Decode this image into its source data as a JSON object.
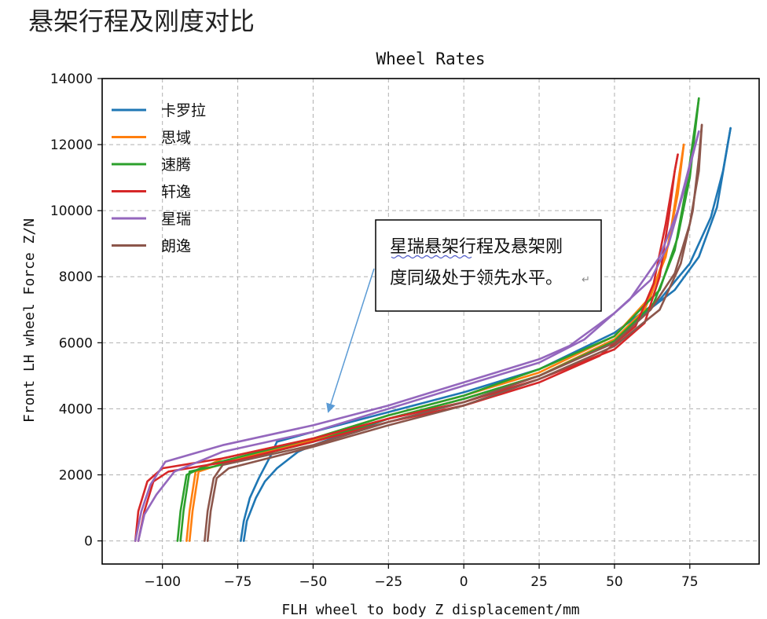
{
  "page": {
    "heading": "悬架行程及刚度对比"
  },
  "chart_data": {
    "type": "line",
    "title": "Wheel Rates",
    "xlabel": "FLH wheel to body Z displacement/mm",
    "ylabel": "Front LH wheel Force Z/N",
    "xlim": [
      -120,
      98
    ],
    "ylim": [
      -700,
      14000
    ],
    "xticks": [
      -100,
      -75,
      -50,
      -25,
      0,
      25,
      50,
      75
    ],
    "xtick_labels": [
      "−100",
      "−75",
      "−50",
      "−25",
      "0",
      "25",
      "50",
      "75"
    ],
    "yticks": [
      0,
      2000,
      4000,
      6000,
      8000,
      10000,
      12000,
      14000
    ],
    "ytick_labels": [
      "0",
      "2000",
      "4000",
      "6000",
      "8000",
      "10000",
      "12000",
      "14000"
    ],
    "grid": true,
    "legend_position": "top-left",
    "annotation": {
      "text_line1": "星瑞悬架行程及悬架刚",
      "text_line2": "度同级处于领先水平。",
      "return_mark": "↵",
      "arrow_target": [
        -45,
        3900
      ]
    },
    "series": [
      {
        "name": "卡罗拉",
        "color": "#1f77b4",
        "branches": [
          [
            [
              -74,
              0
            ],
            [
              -73,
              600
            ],
            [
              -71,
              1300
            ],
            [
              -68,
              1900
            ],
            [
              -64,
              2600
            ],
            [
              -62,
              3000
            ],
            [
              -50,
              3300
            ],
            [
              -25,
              3900
            ],
            [
              0,
              4500
            ],
            [
              25,
              5200
            ],
            [
              50,
              6300
            ],
            [
              65,
              7300
            ],
            [
              75,
              8400
            ],
            [
              82,
              9800
            ],
            [
              86,
              11200
            ],
            [
              88.5,
              12500
            ]
          ],
          [
            [
              -73,
              0
            ],
            [
              -72,
              600
            ],
            [
              -69,
              1300
            ],
            [
              -66,
              1800
            ],
            [
              -62,
              2200
            ],
            [
              -55,
              2700
            ],
            [
              -50,
              2900
            ],
            [
              -25,
              3700
            ],
            [
              0,
              4300
            ],
            [
              25,
              5000
            ],
            [
              50,
              6100
            ],
            [
              60,
              6900
            ],
            [
              70,
              7600
            ],
            [
              78,
              8600
            ],
            [
              84,
              10100
            ],
            [
              88.5,
              12500
            ]
          ]
        ]
      },
      {
        "name": "思域",
        "color": "#ff7f0e",
        "branches": [
          [
            [
              -92,
              0
            ],
            [
              -91,
              900
            ],
            [
              -89,
              2100
            ],
            [
              -80,
              2500
            ],
            [
              -50,
              3100
            ],
            [
              -25,
              3800
            ],
            [
              0,
              4400
            ],
            [
              25,
              5100
            ],
            [
              50,
              6200
            ],
            [
              62,
              7400
            ],
            [
              68,
              9000
            ],
            [
              71,
              10800
            ],
            [
              73,
              12000
            ]
          ],
          [
            [
              -91,
              0
            ],
            [
              -90,
              900
            ],
            [
              -88,
              2100
            ],
            [
              -78,
              2400
            ],
            [
              -50,
              3050
            ],
            [
              -25,
              3700
            ],
            [
              0,
              4300
            ],
            [
              25,
              5000
            ],
            [
              50,
              6100
            ],
            [
              60,
              7000
            ],
            [
              67,
              8600
            ],
            [
              71,
              10500
            ],
            [
              73,
              12000
            ]
          ]
        ]
      },
      {
        "name": "速腾",
        "color": "#2ca02c",
        "branches": [
          [
            [
              -95,
              0
            ],
            [
              -94,
              900
            ],
            [
              -92,
              2000
            ],
            [
              -85,
              2300
            ],
            [
              -50,
              3100
            ],
            [
              -25,
              3800
            ],
            [
              0,
              4400
            ],
            [
              25,
              5200
            ],
            [
              50,
              6200
            ],
            [
              65,
              7600
            ],
            [
              71,
              9200
            ],
            [
              75,
              11000
            ],
            [
              78,
              13400
            ]
          ],
          [
            [
              -94,
              0
            ],
            [
              -93,
              900
            ],
            [
              -91,
              2100
            ],
            [
              -83,
              2250
            ],
            [
              -50,
              3000
            ],
            [
              -25,
              3700
            ],
            [
              0,
              4300
            ],
            [
              25,
              5000
            ],
            [
              50,
              6050
            ],
            [
              63,
              7200
            ],
            [
              70,
              8800
            ],
            [
              74,
              10800
            ],
            [
              78,
              13400
            ]
          ]
        ]
      },
      {
        "name": "轩逸",
        "color": "#d62728",
        "branches": [
          [
            [
              -109,
              0
            ],
            [
              -108,
              900
            ],
            [
              -105,
              1800
            ],
            [
              -100,
              2200
            ],
            [
              -80,
              2500
            ],
            [
              -50,
              3100
            ],
            [
              -25,
              3700
            ],
            [
              0,
              4200
            ],
            [
              25,
              4900
            ],
            [
              50,
              5800
            ],
            [
              60,
              6600
            ],
            [
              65,
              8000
            ],
            [
              68,
              9800
            ],
            [
              70,
              11200
            ],
            [
              71,
              11700
            ]
          ],
          [
            [
              -108,
              0
            ],
            [
              -106,
              900
            ],
            [
              -103,
              1800
            ],
            [
              -98,
              2100
            ],
            [
              -75,
              2450
            ],
            [
              -50,
              3000
            ],
            [
              -25,
              3600
            ],
            [
              0,
              4100
            ],
            [
              25,
              4800
            ],
            [
              45,
              5600
            ],
            [
              57,
              6500
            ],
            [
              63,
              7800
            ],
            [
              67,
              9600
            ],
            [
              70,
              11200
            ],
            [
              71,
              11700
            ]
          ]
        ]
      },
      {
        "name": "星瑞",
        "color": "#9467bd",
        "branches": [
          [
            [
              -109,
              0
            ],
            [
              -107,
              900
            ],
            [
              -104,
              1700
            ],
            [
              -99,
              2400
            ],
            [
              -80,
              2900
            ],
            [
              -50,
              3500
            ],
            [
              -25,
              4100
            ],
            [
              0,
              4800
            ],
            [
              25,
              5500
            ],
            [
              35,
              5900
            ],
            [
              50,
              6900
            ],
            [
              62,
              7900
            ],
            [
              68,
              9000
            ],
            [
              73,
              10600
            ],
            [
              78,
              12400
            ]
          ],
          [
            [
              -108,
              0
            ],
            [
              -106,
              800
            ],
            [
              -102,
              1400
            ],
            [
              -96,
              2100
            ],
            [
              -80,
              2700
            ],
            [
              -50,
              3300
            ],
            [
              -25,
              4000
            ],
            [
              0,
              4700
            ],
            [
              25,
              5400
            ],
            [
              40,
              6100
            ],
            [
              55,
              7300
            ],
            [
              65,
              8600
            ],
            [
              71,
              10000
            ],
            [
              75,
              11400
            ],
            [
              78,
              12400
            ]
          ]
        ]
      },
      {
        "name": "朗逸",
        "color": "#8c564b",
        "branches": [
          [
            [
              -86,
              0
            ],
            [
              -85,
              900
            ],
            [
              -83,
              1900
            ],
            [
              -80,
              2300
            ],
            [
              -50,
              2900
            ],
            [
              -25,
              3600
            ],
            [
              0,
              4200
            ],
            [
              25,
              5000
            ],
            [
              50,
              6000
            ],
            [
              62,
              7000
            ],
            [
              70,
              8100
            ],
            [
              75,
              9600
            ],
            [
              78,
              11200
            ],
            [
              79,
              12600
            ]
          ],
          [
            [
              -85,
              0
            ],
            [
              -84,
              900
            ],
            [
              -82,
              1900
            ],
            [
              -78,
              2200
            ],
            [
              -50,
              2850
            ],
            [
              -25,
              3500
            ],
            [
              0,
              4100
            ],
            [
              25,
              4900
            ],
            [
              50,
              5900
            ],
            [
              65,
              7000
            ],
            [
              72,
              8400
            ],
            [
              76,
              10000
            ],
            [
              78,
              11600
            ],
            [
              79,
              12600
            ]
          ]
        ]
      }
    ]
  }
}
